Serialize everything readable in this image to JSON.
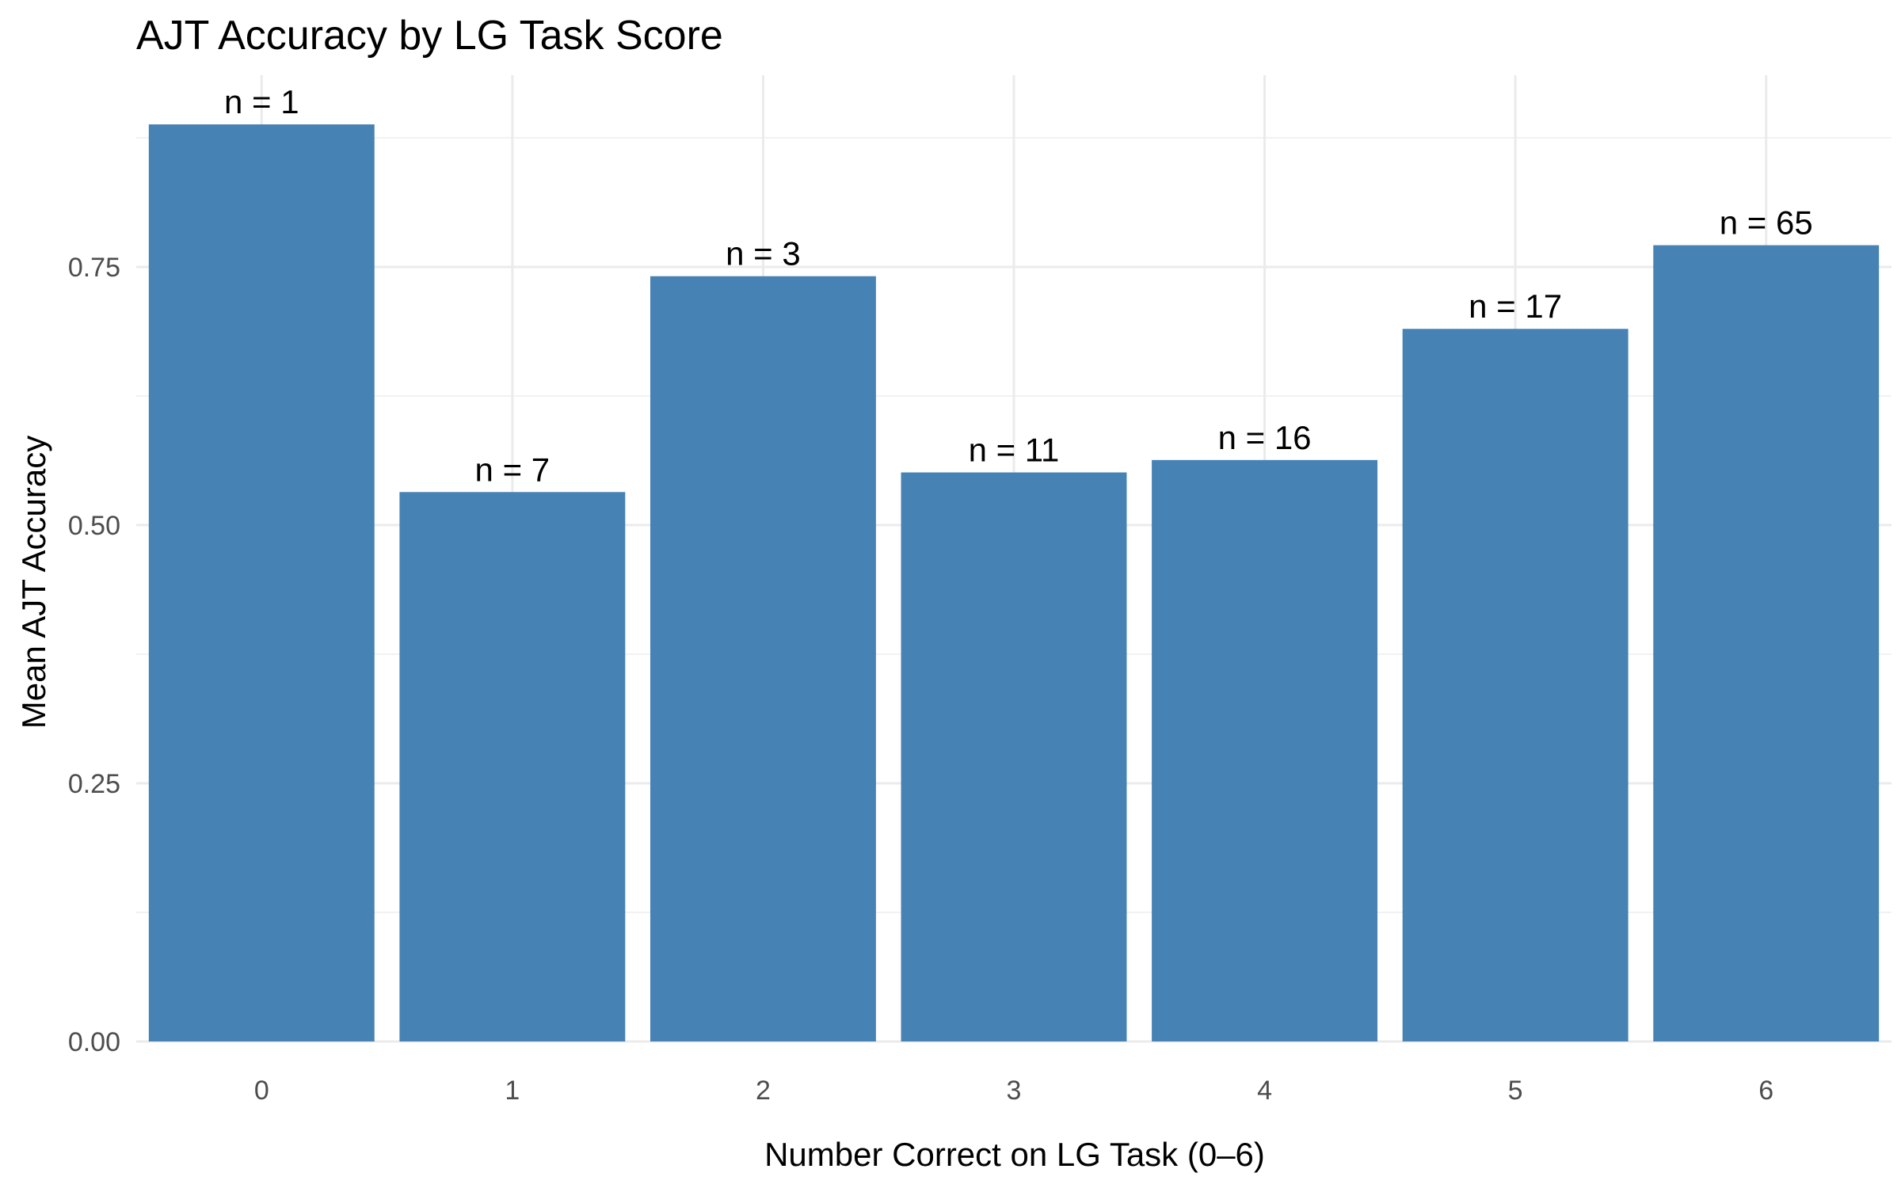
{
  "chart_data": {
    "type": "bar",
    "title": "AJT Accuracy by LG Task Score",
    "xlabel": "Number Correct on LG Task (0–6)",
    "ylabel": "Mean AJT Accuracy",
    "categories": [
      "0",
      "1",
      "2",
      "3",
      "4",
      "5",
      "6"
    ],
    "values": [
      0.888,
      0.532,
      0.741,
      0.551,
      0.563,
      0.69,
      0.771
    ],
    "bar_labels": [
      "n = 1",
      "n = 7",
      "n = 3",
      "n = 11",
      "n = 16",
      "n = 17",
      "n = 65"
    ],
    "y_ticks": [
      0,
      0.25,
      0.5,
      0.75
    ],
    "y_tick_labels": [
      "0.00",
      "0.25",
      "0.50",
      "0.75"
    ],
    "ylim": [
      0,
      0.9
    ],
    "grid": true,
    "legend": "none",
    "bar_color": "#4682B4"
  }
}
